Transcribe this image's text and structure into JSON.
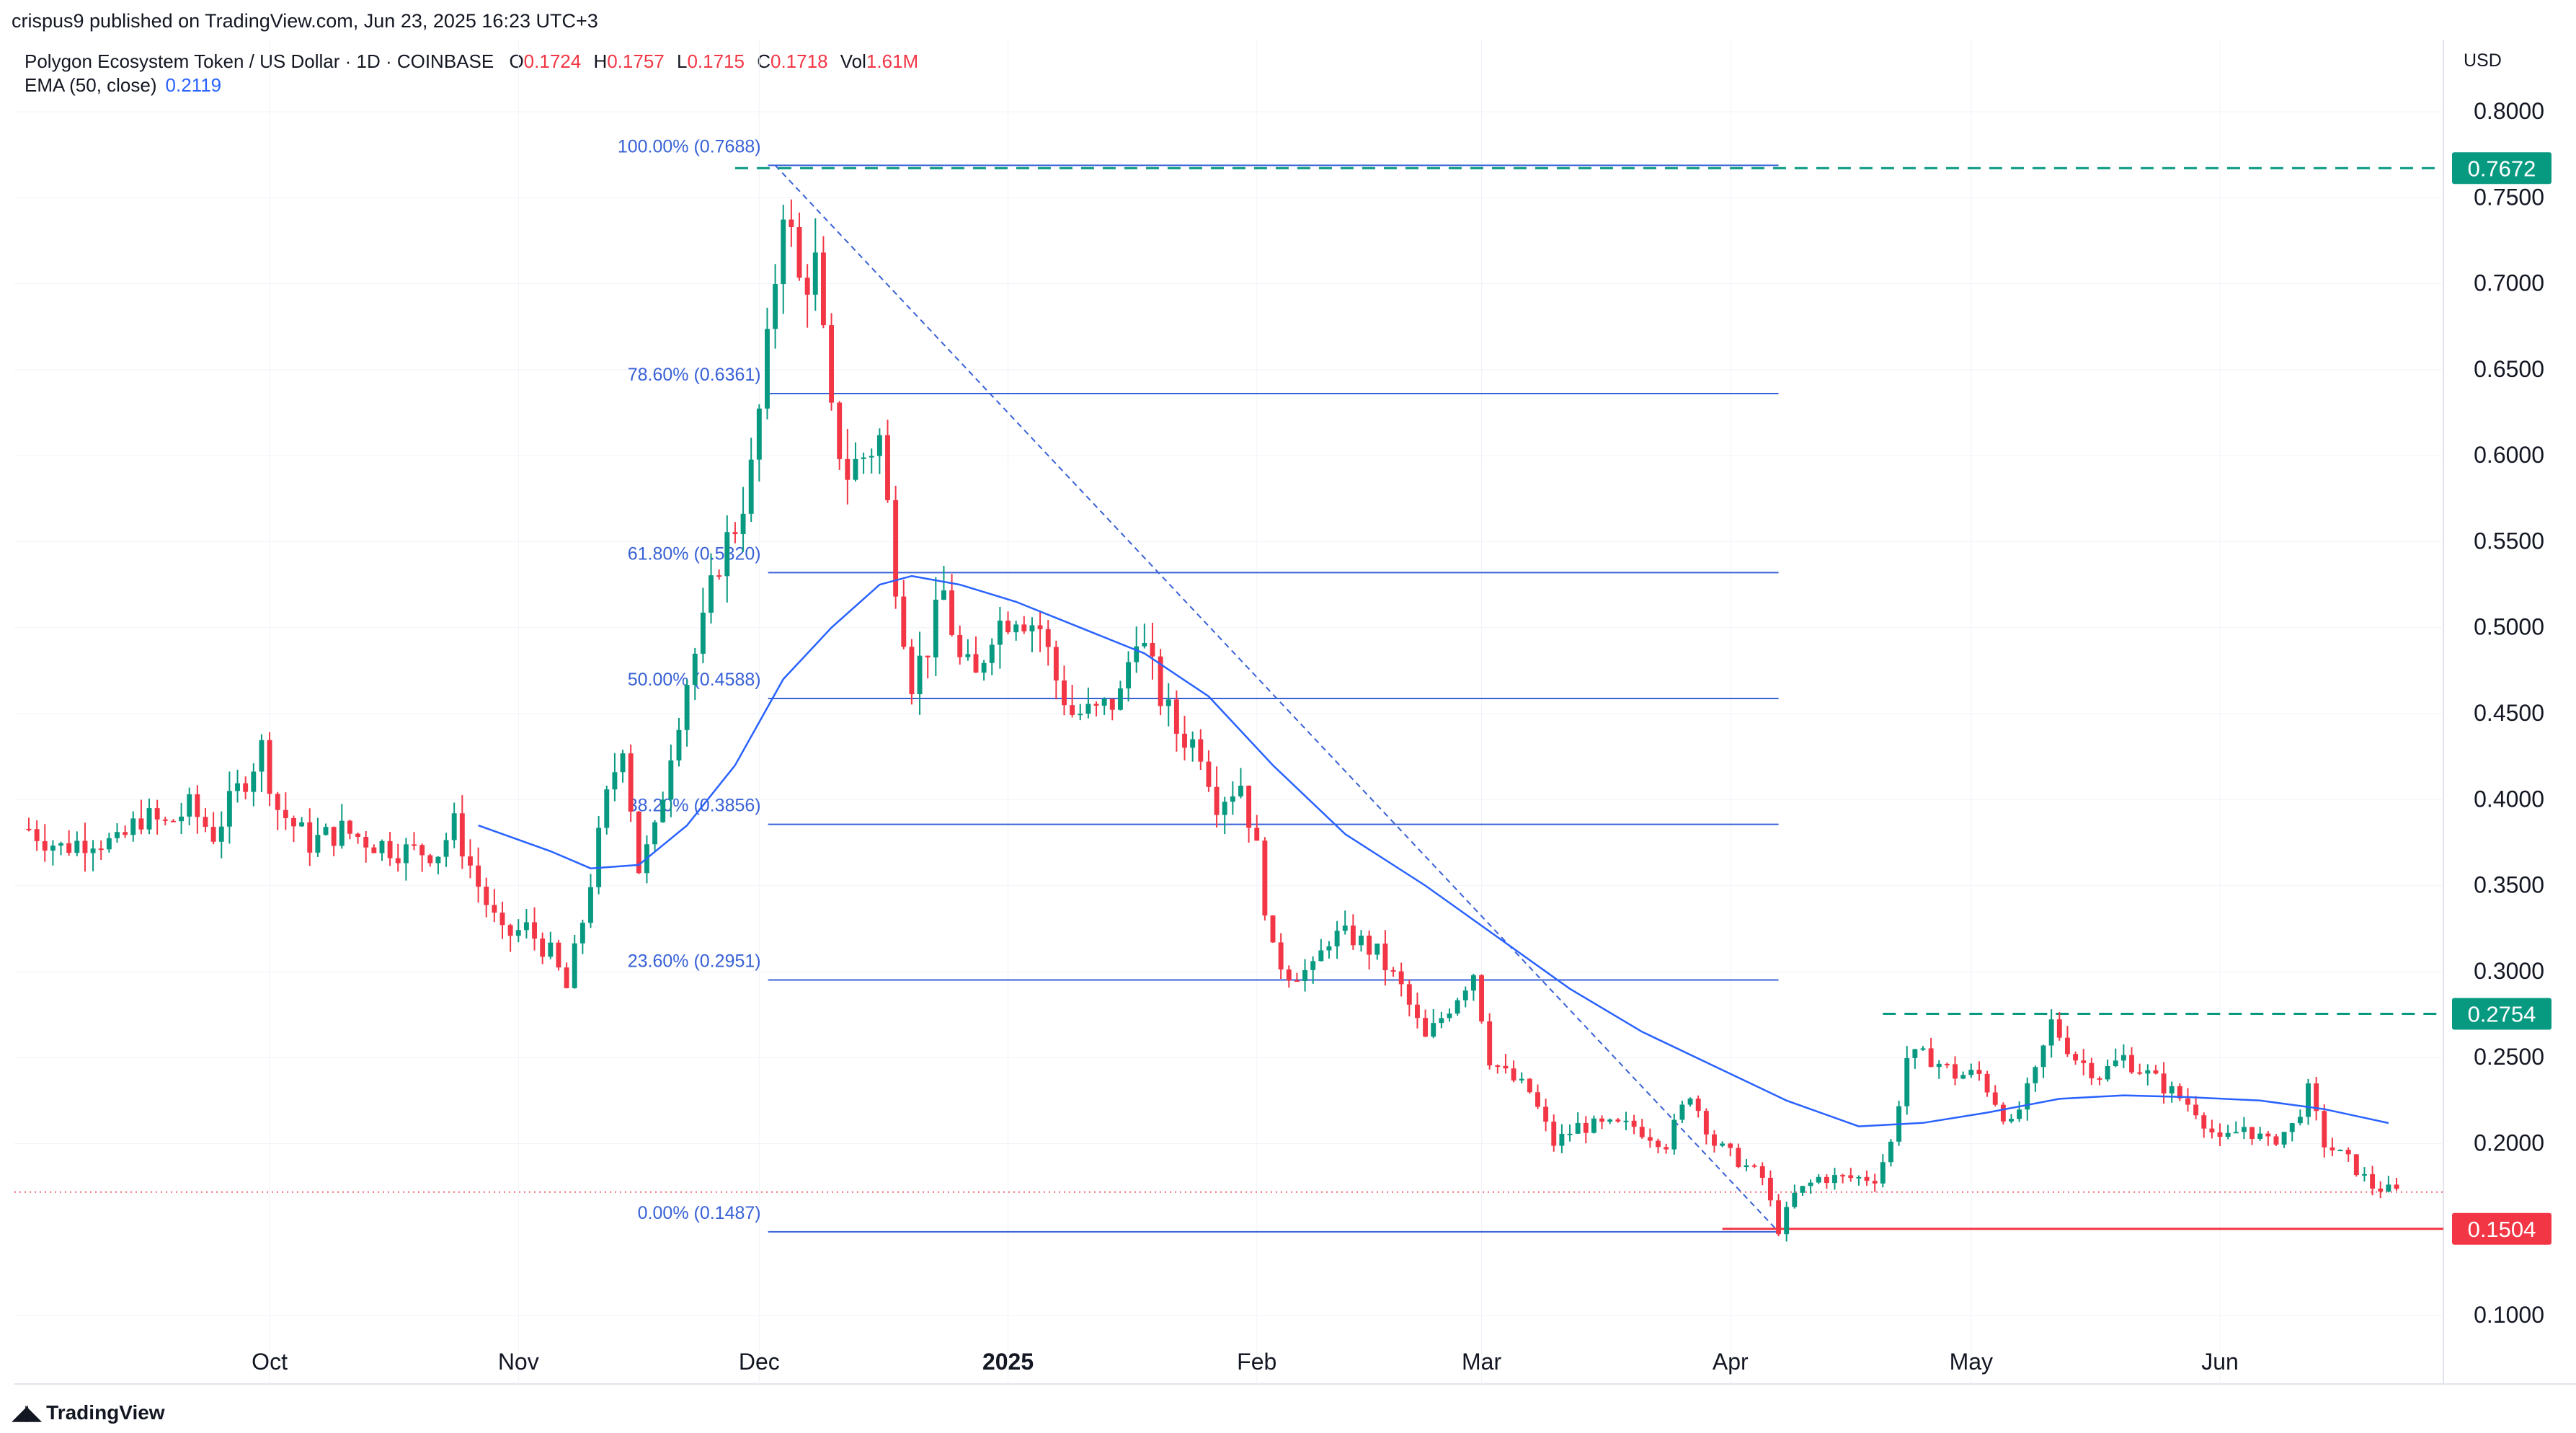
{
  "header": {
    "publisher": "crispus9 published on TradingView.com, Jun 23, 2025 16:23 UTC+3",
    "symbol": "Polygon Ecosystem Token / US Dollar · 1D · COINBASE",
    "ohlc": [
      {
        "label": "O",
        "value": "0.1724"
      },
      {
        "label": "H",
        "value": "0.1757"
      },
      {
        "label": "L",
        "value": "0.1715"
      },
      {
        "label": "C",
        "value": "0.1718"
      },
      {
        "label": "Vol",
        "value": "1.61M"
      }
    ],
    "indicator_label": "EMA (50, close)",
    "indicator_value": "0.2119",
    "currency": "USD"
  },
  "footer": {
    "brand": "TradingView"
  },
  "colors": {
    "up": "#089981",
    "down": "#f23645",
    "ema": "#2962ff",
    "fib": "#3861d6",
    "resistance": "#089981",
    "support": "#f23645",
    "grid": "#f0f3fa",
    "axis_text": "#131722"
  },
  "chart_data": {
    "type": "candlestick",
    "y_axis": {
      "min": 0.1,
      "max": 0.8,
      "ticks": [
        "0.8000",
        "0.7500",
        "0.7000",
        "0.6500",
        "0.6000",
        "0.5500",
        "0.5000",
        "0.4500",
        "0.4000",
        "0.3500",
        "0.3000",
        "0.2500",
        "0.2000",
        "0.1000"
      ]
    },
    "x_axis": {
      "start": "2024-09-01",
      "end": "2025-06-23",
      "labels": [
        {
          "date": "2024-10-01",
          "text": "Oct",
          "bold": false
        },
        {
          "date": "2024-11-01",
          "text": "Nov",
          "bold": false
        },
        {
          "date": "2024-12-01",
          "text": "Dec",
          "bold": false
        },
        {
          "date": "2025-01-01",
          "text": "2025",
          "bold": true
        },
        {
          "date": "2025-02-01",
          "text": "Feb",
          "bold": false
        },
        {
          "date": "2025-03-01",
          "text": "Mar",
          "bold": false
        },
        {
          "date": "2025-04-01",
          "text": "Apr",
          "bold": false
        },
        {
          "date": "2025-05-01",
          "text": "May",
          "bold": false
        },
        {
          "date": "2025-06-01",
          "text": "Jun",
          "bold": false
        }
      ]
    },
    "price_path": [
      [
        "2024-09-01",
        0.383
      ],
      [
        "2024-09-05",
        0.372
      ],
      [
        "2024-09-09",
        0.378
      ],
      [
        "2024-09-12",
        0.373
      ],
      [
        "2024-09-15",
        0.39
      ],
      [
        "2024-09-18",
        0.385
      ],
      [
        "2024-09-21",
        0.395
      ],
      [
        "2024-09-24",
        0.38
      ],
      [
        "2024-09-27",
        0.405
      ],
      [
        "2024-09-30",
        0.43
      ],
      [
        "2024-10-02",
        0.395
      ],
      [
        "2024-10-06",
        0.375
      ],
      [
        "2024-10-10",
        0.382
      ],
      [
        "2024-10-14",
        0.375
      ],
      [
        "2024-10-18",
        0.37
      ],
      [
        "2024-10-22",
        0.37
      ],
      [
        "2024-10-24",
        0.385
      ],
      [
        "2024-10-27",
        0.35
      ],
      [
        "2024-10-30",
        0.32
      ],
      [
        "2024-11-02",
        0.325
      ],
      [
        "2024-11-05",
        0.31
      ],
      [
        "2024-11-07",
        0.29
      ],
      [
        "2024-11-09",
        0.33
      ],
      [
        "2024-11-12",
        0.4
      ],
      [
        "2024-11-14",
        0.435
      ],
      [
        "2024-11-16",
        0.36
      ],
      [
        "2024-11-18",
        0.38
      ],
      [
        "2024-11-20",
        0.43
      ],
      [
        "2024-11-22",
        0.47
      ],
      [
        "2024-11-24",
        0.5
      ],
      [
        "2024-11-26",
        0.54
      ],
      [
        "2024-11-28",
        0.56
      ],
      [
        "2024-11-30",
        0.59
      ],
      [
        "2024-12-02",
        0.66
      ],
      [
        "2024-12-04",
        0.75
      ],
      [
        "2024-12-06",
        0.7
      ],
      [
        "2024-12-08",
        0.71
      ],
      [
        "2024-12-10",
        0.62
      ],
      [
        "2024-12-12",
        0.59
      ],
      [
        "2024-12-14",
        0.6
      ],
      [
        "2024-12-16",
        0.61
      ],
      [
        "2024-12-18",
        0.53
      ],
      [
        "2024-12-20",
        0.47
      ],
      [
        "2024-12-22",
        0.49
      ],
      [
        "2024-12-24",
        0.52
      ],
      [
        "2024-12-26",
        0.48
      ],
      [
        "2024-12-28",
        0.47
      ],
      [
        "2024-12-30",
        0.5
      ],
      [
        "2025-01-02",
        0.51
      ],
      [
        "2025-01-05",
        0.5
      ],
      [
        "2025-01-07",
        0.47
      ],
      [
        "2025-01-09",
        0.45
      ],
      [
        "2025-01-12",
        0.45
      ],
      [
        "2025-01-15",
        0.46
      ],
      [
        "2025-01-17",
        0.5
      ],
      [
        "2025-01-20",
        0.46
      ],
      [
        "2025-01-22",
        0.44
      ],
      [
        "2025-01-25",
        0.43
      ],
      [
        "2025-01-27",
        0.4
      ],
      [
        "2025-01-30",
        0.41
      ],
      [
        "2025-02-01",
        0.37
      ],
      [
        "2025-02-03",
        0.31
      ],
      [
        "2025-02-05",
        0.3
      ],
      [
        "2025-02-08",
        0.3
      ],
      [
        "2025-02-10",
        0.32
      ],
      [
        "2025-02-13",
        0.32
      ],
      [
        "2025-02-16",
        0.31
      ],
      [
        "2025-02-19",
        0.29
      ],
      [
        "2025-02-22",
        0.26
      ],
      [
        "2025-02-25",
        0.28
      ],
      [
        "2025-02-28",
        0.3
      ],
      [
        "2025-03-02",
        0.25
      ],
      [
        "2025-03-04",
        0.24
      ],
      [
        "2025-03-07",
        0.23
      ],
      [
        "2025-03-10",
        0.2
      ],
      [
        "2025-03-13",
        0.21
      ],
      [
        "2025-03-16",
        0.21
      ],
      [
        "2025-03-20",
        0.21
      ],
      [
        "2025-03-24",
        0.2
      ],
      [
        "2025-03-27",
        0.23
      ],
      [
        "2025-03-30",
        0.2
      ],
      [
        "2025-04-02",
        0.19
      ],
      [
        "2025-04-05",
        0.18
      ],
      [
        "2025-04-07",
        0.15
      ],
      [
        "2025-04-09",
        0.17
      ],
      [
        "2025-04-12",
        0.18
      ],
      [
        "2025-04-16",
        0.18
      ],
      [
        "2025-04-19",
        0.18
      ],
      [
        "2025-04-21",
        0.2
      ],
      [
        "2025-04-23",
        0.25
      ],
      [
        "2025-04-26",
        0.25
      ],
      [
        "2025-04-29",
        0.24
      ],
      [
        "2025-05-02",
        0.24
      ],
      [
        "2025-05-06",
        0.21
      ],
      [
        "2025-05-09",
        0.24
      ],
      [
        "2025-05-11",
        0.27
      ],
      [
        "2025-05-14",
        0.25
      ],
      [
        "2025-05-17",
        0.24
      ],
      [
        "2025-05-20",
        0.25
      ],
      [
        "2025-05-23",
        0.24
      ],
      [
        "2025-05-26",
        0.23
      ],
      [
        "2025-05-29",
        0.22
      ],
      [
        "2025-06-01",
        0.2
      ],
      [
        "2025-06-04",
        0.21
      ],
      [
        "2025-06-07",
        0.2
      ],
      [
        "2025-06-10",
        0.21
      ],
      [
        "2025-06-12",
        0.23
      ],
      [
        "2025-06-14",
        0.2
      ],
      [
        "2025-06-17",
        0.19
      ],
      [
        "2025-06-20",
        0.175
      ],
      [
        "2025-06-23",
        0.1718
      ]
    ],
    "ema_50": [
      [
        "2024-10-27",
        0.385
      ],
      [
        "2024-11-05",
        0.37
      ],
      [
        "2024-11-10",
        0.36
      ],
      [
        "2024-11-16",
        0.362
      ],
      [
        "2024-11-22",
        0.385
      ],
      [
        "2024-11-28",
        0.42
      ],
      [
        "2024-12-04",
        0.47
      ],
      [
        "2024-12-10",
        0.5
      ],
      [
        "2024-12-16",
        0.525
      ],
      [
        "2024-12-20",
        0.53
      ],
      [
        "2024-12-26",
        0.525
      ],
      [
        "2025-01-02",
        0.515
      ],
      [
        "2025-01-10",
        0.5
      ],
      [
        "2025-01-18",
        0.485
      ],
      [
        "2025-01-26",
        0.46
      ],
      [
        "2025-02-03",
        0.42
      ],
      [
        "2025-02-12",
        0.38
      ],
      [
        "2025-02-22",
        0.35
      ],
      [
        "2025-03-03",
        0.32
      ],
      [
        "2025-03-12",
        0.29
      ],
      [
        "2025-03-21",
        0.265
      ],
      [
        "2025-03-30",
        0.245
      ],
      [
        "2025-04-08",
        0.225
      ],
      [
        "2025-04-17",
        0.21
      ],
      [
        "2025-04-25",
        0.212
      ],
      [
        "2025-05-03",
        0.218
      ],
      [
        "2025-05-12",
        0.226
      ],
      [
        "2025-05-20",
        0.228
      ],
      [
        "2025-05-28",
        0.227
      ],
      [
        "2025-06-06",
        0.225
      ],
      [
        "2025-06-14",
        0.22
      ],
      [
        "2025-06-22",
        0.2119
      ]
    ],
    "fibonacci": {
      "from_date": "2024-12-03",
      "to_date": "2025-04-07",
      "levels": [
        {
          "ratio": "100.00%",
          "price": 0.7688,
          "label": "100.00% (0.7688)"
        },
        {
          "ratio": "78.60%",
          "price": 0.6361,
          "label": "78.60% (0.6361)"
        },
        {
          "ratio": "61.80%",
          "price": 0.532,
          "label": "61.80% (0.5320)"
        },
        {
          "ratio": "50.00%",
          "price": 0.4588,
          "label": "50.00% (0.4588)"
        },
        {
          "ratio": "38.20%",
          "price": 0.3856,
          "label": "38.20% (0.3856)"
        },
        {
          "ratio": "23.60%",
          "price": 0.2951,
          "label": "23.60% (0.2951)"
        },
        {
          "ratio": "0.00%",
          "price": 0.1487,
          "label": "0.00% (0.1487)"
        }
      ]
    },
    "horizontal_levels": [
      {
        "price": 0.7672,
        "label": "0.7672",
        "style": "dashed",
        "color": "#089981",
        "from_date": "2024-11-28"
      },
      {
        "price": 0.2754,
        "label": "0.2754",
        "style": "dashed",
        "color": "#089981",
        "from_date": "2025-04-20"
      },
      {
        "price": 0.1504,
        "label": "0.1504",
        "style": "solid",
        "color": "#f23645",
        "from_date": "2025-03-31"
      }
    ],
    "last_price": 0.1718
  }
}
